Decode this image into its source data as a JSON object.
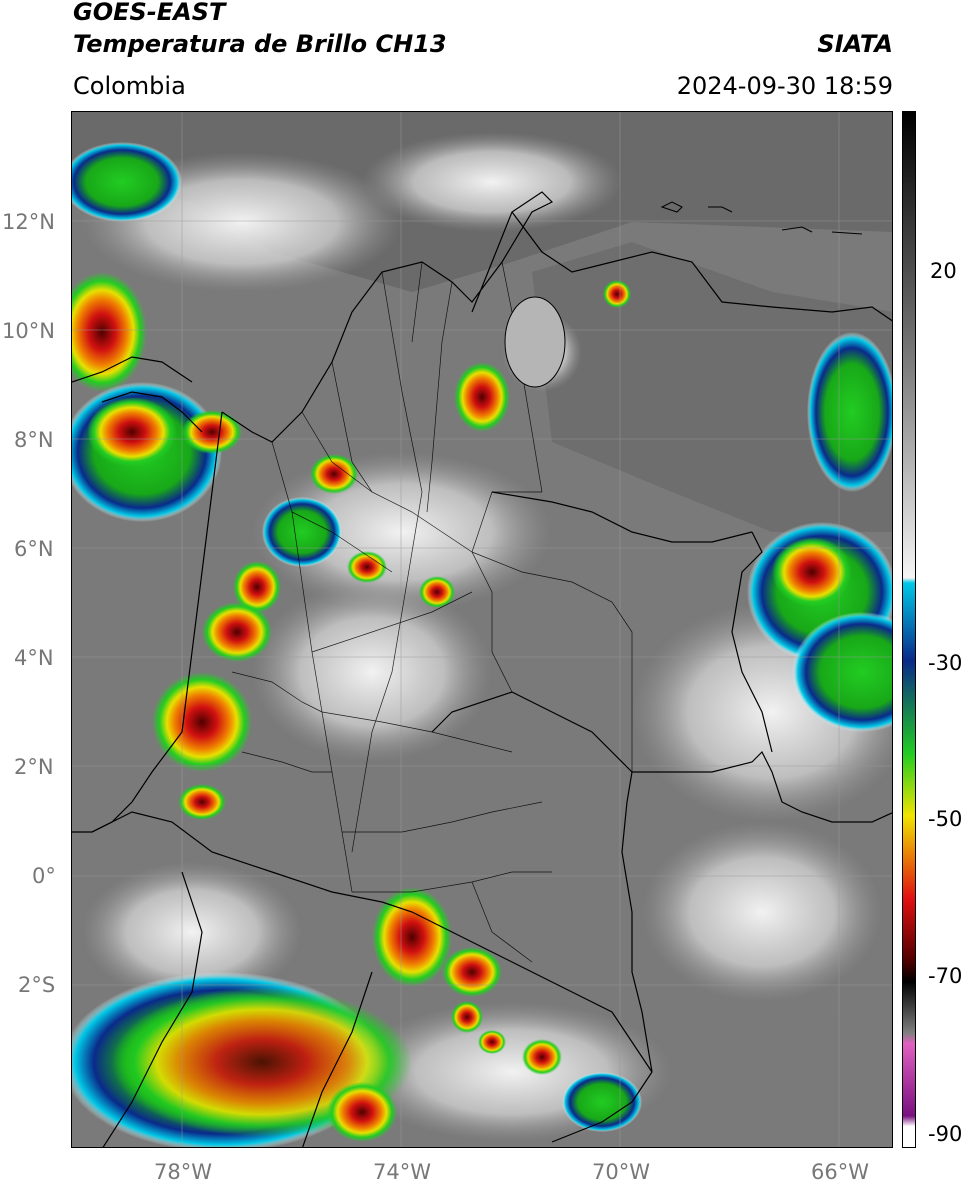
{
  "header": {
    "satellite": "GOES-EAST",
    "product": "Temperatura de Brillo CH13",
    "region": "Colombia",
    "agency": "SIATA",
    "datetime": "2024-09-30 18:59"
  },
  "map": {
    "lat_ticks": [
      "12°N",
      "10°N",
      "8°N",
      "6°N",
      "4°N",
      "2°N",
      "0°",
      "2°S"
    ],
    "lon_ticks": [
      "78°W",
      "74°W",
      "70°W",
      "66°W"
    ],
    "lat_range": [
      -4.8,
      14.2
    ],
    "lon_range": [
      -80.0,
      -65.0
    ]
  },
  "colorbar": {
    "ticks": [
      "20",
      "-30",
      "-50",
      "-70",
      "-90"
    ],
    "colors": {
      "warm_top": "#000000",
      "gray": "#808080",
      "white": "#f5f5f5",
      "cyan": "#00c8e6",
      "blue": "#0a2a8a",
      "green": "#22cc22",
      "yellow": "#f0e400",
      "red": "#e01010",
      "darkred": "#500000",
      "pink": "#e060c0",
      "purple": "#7a1080"
    }
  }
}
